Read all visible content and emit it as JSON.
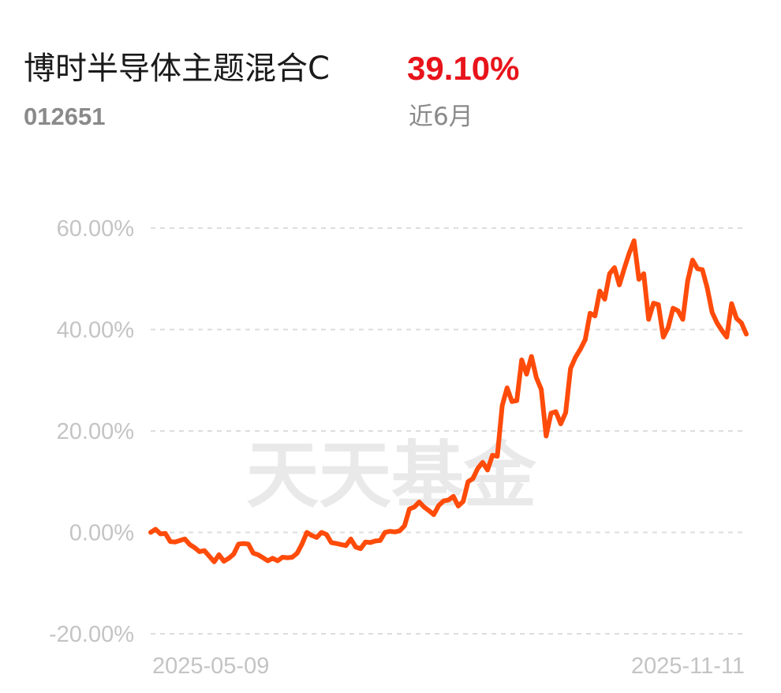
{
  "header": {
    "fund_name": "博时半导体主题混合C",
    "return_value": "39.10%",
    "fund_code": "012651",
    "period_label": "近6月"
  },
  "watermark": "天天基金",
  "colors": {
    "line": "#ff4b0a",
    "return_text": "#e8141b",
    "grid": "#dddddd",
    "tick_text": "#c4c4c4"
  },
  "chart_data": {
    "type": "line",
    "title": "",
    "xlabel": "",
    "ylabel": "",
    "ylim": [
      -20,
      60
    ],
    "y_ticks": [
      60,
      40,
      20,
      0,
      -20
    ],
    "y_tick_labels": [
      "60.00%",
      "40.00%",
      "20.00%",
      "0.00%",
      "-20.00%"
    ],
    "x_tick_labels": [
      "2025-05-09",
      "2025-11-11"
    ],
    "grid": true,
    "legend": "none",
    "series": [
      {
        "values": [
          0,
          0.6,
          -0.3,
          -0.2,
          -1.8,
          -1.9,
          -1.6,
          -1.3,
          -2.4,
          -3.0,
          -3.8,
          -3.6,
          -4.7,
          -5.8,
          -4.4,
          -5.7,
          -5.1,
          -4.3,
          -2.3,
          -2.2,
          -2.3,
          -4.1,
          -4.4,
          -5.0,
          -5.6,
          -5.1,
          -5.6,
          -4.9,
          -5.0,
          -4.9,
          -4.1,
          -2.3,
          0,
          -0.6,
          -1.0,
          0,
          -0.4,
          -2.0,
          -2.2,
          -2.4,
          -2.6,
          -1.3,
          -2.9,
          -3.2,
          -1.9,
          -2.0,
          -1.7,
          -1.6,
          0,
          0.2,
          0.1,
          0.3,
          1.3,
          4.6,
          5.0,
          6.0,
          5.0,
          4.3,
          3.5,
          5.3,
          6.2,
          6.4,
          7.1,
          5.2,
          6.1,
          10.0,
          10.6,
          12.6,
          13.8,
          12.3,
          15.2,
          15.0,
          25.0,
          28.5,
          25.8,
          26.0,
          34.0,
          31.2,
          34.7,
          30.5,
          28.2,
          19.0,
          23.5,
          23.8,
          21.4,
          23.6,
          32.3,
          34.5,
          36.1,
          38.0,
          43.2,
          42.7,
          47.6,
          46.0,
          51.0,
          52.2,
          48.8,
          52.0,
          55.0,
          57.5,
          49.9,
          51.0,
          42.0,
          45.2,
          44.9,
          38.5,
          40.4,
          44.2,
          43.7,
          42.0,
          49.6,
          53.7,
          52.0,
          51.8,
          48.2,
          43.4,
          41.3,
          39.8,
          38.5,
          45.1,
          42.2,
          41.3,
          39.1
        ]
      }
    ]
  }
}
